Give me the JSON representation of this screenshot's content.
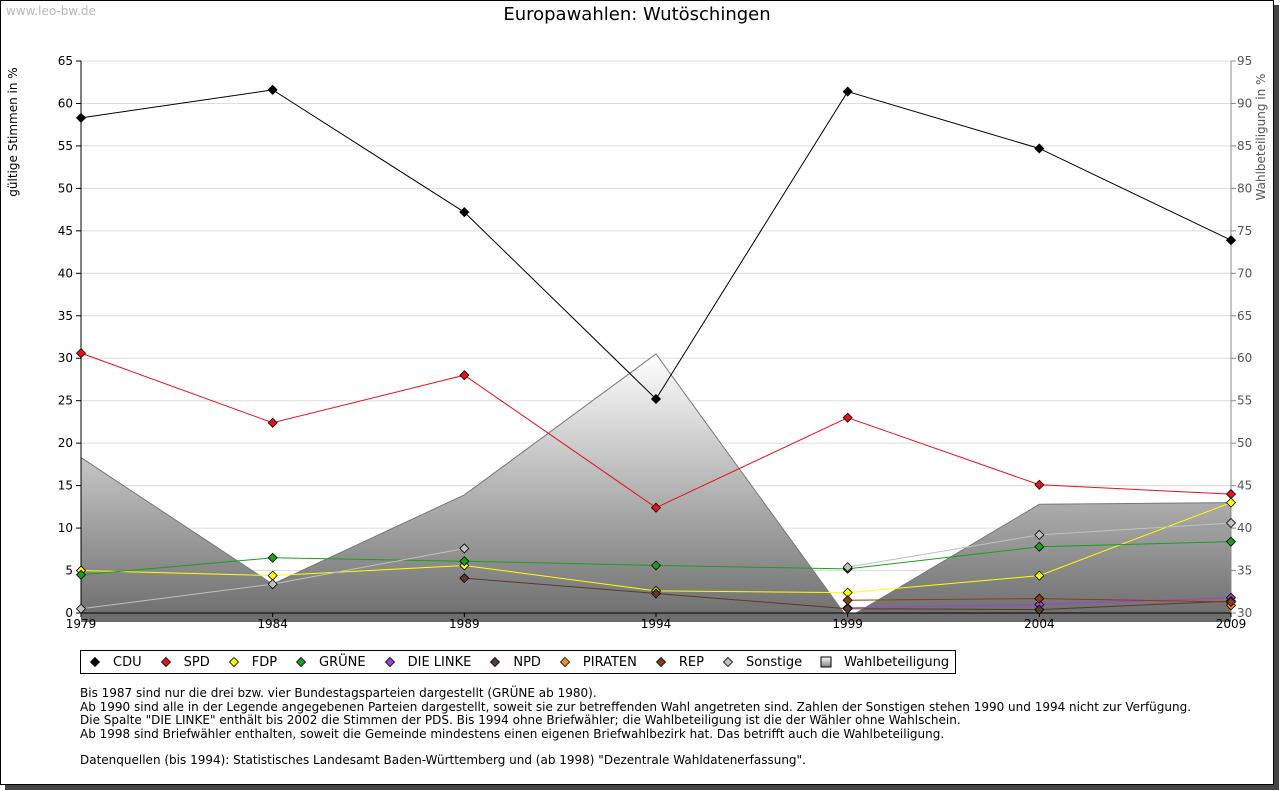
{
  "watermark": "www.leo-bw.de",
  "chart_data": {
    "type": "line",
    "title": "Europawahlen: Wutöschingen",
    "ylabel": "gültige Stimmen in %",
    "y2label": "Wahlbeteiligung in %",
    "categories": [
      "1979",
      "1984",
      "1989",
      "1994",
      "1999",
      "2004",
      "2009"
    ],
    "ylim": [
      0,
      65
    ],
    "yticks": [
      "0",
      "5",
      "10",
      "15",
      "20",
      "25",
      "30",
      "35",
      "40",
      "45",
      "50",
      "55",
      "60",
      "65"
    ],
    "y2lim": [
      30,
      95
    ],
    "y2ticks": [
      "30",
      "35",
      "40",
      "45",
      "50",
      "55",
      "60",
      "65",
      "70",
      "75",
      "80",
      "85",
      "90",
      "95"
    ],
    "area": {
      "name": "Wahlbeteiligung",
      "values": [
        48.3,
        33.4,
        43.9,
        60.5,
        29.4,
        42.8,
        43.0
      ],
      "color": "#808080"
    },
    "series": [
      {
        "name": "CDU",
        "color": "#000000",
        "values": [
          58.3,
          61.6,
          47.2,
          25.2,
          61.4,
          54.7,
          43.9
        ]
      },
      {
        "name": "SPD",
        "color": "#e8101a",
        "values": [
          30.6,
          22.4,
          28.0,
          12.4,
          23.0,
          15.1,
          14.0
        ]
      },
      {
        "name": "FDP",
        "color": "#ffff00",
        "values": [
          5.0,
          4.4,
          5.6,
          2.6,
          2.4,
          4.4,
          13.0
        ]
      },
      {
        "name": "GRÜNE",
        "color": "#19a019",
        "values": [
          4.5,
          6.5,
          6.1,
          5.6,
          5.2,
          7.8,
          8.4
        ]
      },
      {
        "name": "DIE LINKE",
        "color": "#a040e0",
        "values": [
          null,
          null,
          null,
          null,
          0.6,
          1.0,
          1.8
        ]
      },
      {
        "name": "NPD",
        "color": "#5a3a2a",
        "values": [
          null,
          null,
          4.1,
          2.3,
          0.5,
          0.4,
          1.4
        ]
      },
      {
        "name": "PIRATEN",
        "color": "#ff8c1a",
        "values": [
          null,
          null,
          null,
          null,
          null,
          null,
          0.9
        ]
      },
      {
        "name": "REP",
        "color": "#8b3c14",
        "values": [
          null,
          null,
          null,
          null,
          1.5,
          1.7,
          1.3
        ]
      },
      {
        "name": "Sonstige",
        "color": "#c0c0c0",
        "values": [
          0.5,
          3.4,
          7.6,
          null,
          5.4,
          9.2,
          10.6
        ]
      }
    ]
  },
  "legend": {
    "items": [
      {
        "label": "CDU",
        "color": "#000000",
        "shape": "diamond"
      },
      {
        "label": "SPD",
        "color": "#e8101a",
        "shape": "diamond"
      },
      {
        "label": "FDP",
        "color": "#ffff00",
        "shape": "diamond"
      },
      {
        "label": "GRÜNE",
        "color": "#19a019",
        "shape": "diamond"
      },
      {
        "label": "DIE LINKE",
        "color": "#a040e0",
        "shape": "diamond"
      },
      {
        "label": "NPD",
        "color": "#5a3a2a",
        "shape": "diamond"
      },
      {
        "label": "PIRATEN",
        "color": "#ff8c1a",
        "shape": "diamond"
      },
      {
        "label": "REP",
        "color": "#8b3c14",
        "shape": "diamond"
      },
      {
        "label": "Sonstige",
        "color": "#c0c0c0",
        "shape": "diamond"
      },
      {
        "label": "Wahlbeteiligung",
        "color": "#a0a0a0",
        "shape": "square"
      }
    ]
  },
  "notes": {
    "line1": "Bis 1987 sind nur die drei bzw. vier Bundestagsparteien dargestellt (GRÜNE ab 1980).",
    "line2": "Ab 1990 sind alle in der Legende angegebenen Parteien dargestellt, soweit sie zur betreffenden Wahl angetreten sind. Zahlen der Sonstigen stehen 1990 und 1994 nicht zur Verfügung.",
    "line3": "Die Spalte \"DIE LINKE\" enthält bis 2002 die Stimmen der PDS. Bis 1994 ohne Briefwähler; die Wahlbeteiligung ist die der Wähler ohne Wahlschein.",
    "line4": "Ab 1998 sind Briefwähler enthalten, soweit die Gemeinde mindestens einen eigenen Briefwahlbezirk hat. Das betrifft auch die Wahlbeteiligung.",
    "line5": "Datenquellen (bis 1994): Statistisches Landesamt Baden-Württemberg und (ab 1998) \"Dezentrale Wahldatenerfassung\"."
  }
}
